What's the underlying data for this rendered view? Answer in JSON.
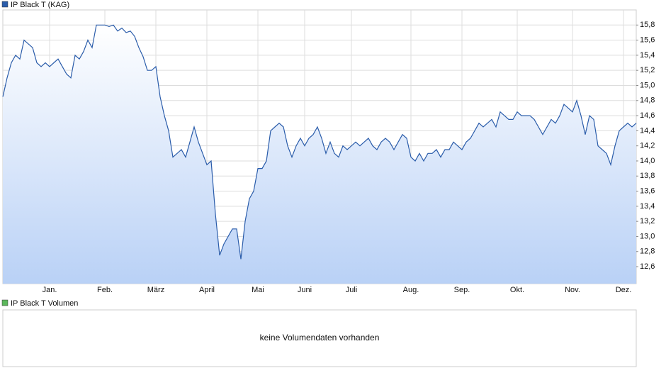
{
  "chart_data": {
    "type": "area",
    "series": [
      {
        "name": "IP Black T (KAG)",
        "color": "#2a5caa",
        "values": [
          14.85,
          15.1,
          15.3,
          15.4,
          15.35,
          15.6,
          15.55,
          15.5,
          15.3,
          15.25,
          15.3,
          15.25,
          15.3,
          15.35,
          15.25,
          15.15,
          15.1,
          15.4,
          15.35,
          15.45,
          15.6,
          15.5,
          15.8,
          15.8,
          15.8,
          15.78,
          15.8,
          15.72,
          15.76,
          15.7,
          15.72,
          15.65,
          15.5,
          15.38,
          15.2,
          15.2,
          15.25,
          14.85,
          14.6,
          14.4,
          14.05,
          14.1,
          14.15,
          14.05,
          14.25,
          14.45,
          14.25,
          14.1,
          13.95,
          14.0,
          13.3,
          12.75,
          12.9,
          13.0,
          13.1,
          13.1,
          12.7,
          13.2,
          13.5,
          13.6,
          13.9,
          13.9,
          14.0,
          14.4,
          14.45,
          14.5,
          14.45,
          14.2,
          14.05,
          14.2,
          14.3,
          14.2,
          14.3,
          14.35,
          14.45,
          14.3,
          14.1,
          14.25,
          14.1,
          14.05,
          14.2,
          14.15,
          14.2,
          14.25,
          14.2,
          14.25,
          14.3,
          14.2,
          14.15,
          14.25,
          14.3,
          14.25,
          14.15,
          14.25,
          14.35,
          14.3,
          14.05,
          14.0,
          14.1,
          14.0,
          14.1,
          14.1,
          14.15,
          14.05,
          14.15,
          14.15,
          14.25,
          14.2,
          14.15,
          14.25,
          14.3,
          14.4,
          14.5,
          14.45,
          14.5,
          14.55,
          14.45,
          14.65,
          14.6,
          14.55,
          14.55,
          14.65,
          14.6,
          14.6,
          14.6,
          14.55,
          14.45,
          14.35,
          14.45,
          14.55,
          14.5,
          14.6,
          14.75,
          14.7,
          14.65,
          14.8,
          14.6,
          14.35,
          14.6,
          14.55,
          14.2,
          14.15,
          14.1,
          13.95,
          14.2,
          14.4,
          14.45,
          14.5,
          14.45,
          14.5
        ]
      }
    ],
    "categories": [
      null,
      null,
      null,
      null,
      null,
      null,
      null,
      null,
      null,
      null,
      null,
      "Jan.",
      null,
      null,
      null,
      null,
      null,
      null,
      null,
      null,
      null,
      null,
      null,
      null,
      "Feb.",
      null,
      null,
      null,
      null,
      null,
      null,
      null,
      null,
      null,
      null,
      null,
      "März",
      null,
      null,
      null,
      null,
      null,
      null,
      null,
      null,
      null,
      null,
      null,
      "April",
      null,
      null,
      null,
      null,
      null,
      null,
      null,
      null,
      null,
      null,
      null,
      "Mai",
      null,
      null,
      null,
      null,
      null,
      null,
      null,
      null,
      null,
      null,
      "Juni",
      null,
      null,
      null,
      null,
      null,
      null,
      null,
      null,
      null,
      null,
      "Juli",
      null,
      null,
      null,
      null,
      null,
      null,
      null,
      null,
      null,
      null,
      null,
      null,
      null,
      "Aug.",
      null,
      null,
      null,
      null,
      null,
      null,
      null,
      null,
      null,
      null,
      null,
      "Sep.",
      null,
      null,
      null,
      null,
      null,
      null,
      null,
      null,
      null,
      null,
      null,
      null,
      "Okt.",
      null,
      null,
      null,
      null,
      null,
      null,
      null,
      null,
      null,
      null,
      null,
      null,
      "Nov.",
      null,
      null,
      null,
      null,
      null,
      null,
      null,
      null,
      null,
      null,
      null,
      "Dez.",
      null,
      null,
      null
    ],
    "ylim": [
      12.375,
      16.0
    ],
    "yticks": [
      {
        "value": 12.6,
        "label": "12,6"
      },
      {
        "value": 12.8,
        "label": "12,8"
      },
      {
        "value": 13.0,
        "label": "13,0"
      },
      {
        "value": 13.2,
        "label": "13,2"
      },
      {
        "value": 13.4,
        "label": "13,4"
      },
      {
        "value": 13.6,
        "label": "13,6"
      },
      {
        "value": 13.8,
        "label": "13,8"
      },
      {
        "value": 14.0,
        "label": "14,0"
      },
      {
        "value": 14.2,
        "label": "14,2"
      },
      {
        "value": 14.4,
        "label": "14,4"
      },
      {
        "value": 14.6,
        "label": "14,6"
      },
      {
        "value": 14.8,
        "label": "14,8"
      },
      {
        "value": 15.0,
        "label": "15,0"
      },
      {
        "value": 15.2,
        "label": "15,2"
      },
      {
        "value": 15.4,
        "label": "15,4"
      },
      {
        "value": 15.6,
        "label": "15,6"
      },
      {
        "value": 15.8,
        "label": "15,8"
      }
    ],
    "grid": true
  },
  "volume_panel": {
    "legend": "IP Black T Volumen",
    "color": "#5cb85c",
    "message": "keine Volumendaten vorhanden"
  }
}
